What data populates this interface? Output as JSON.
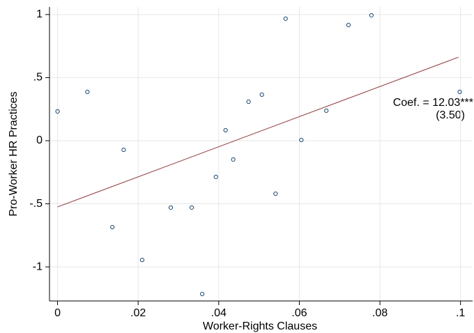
{
  "chart_data": {
    "type": "scatter",
    "x_label": "Worker-Rights Clauses",
    "y_label": "Pro-Worker HR Practices",
    "xlim": [
      -0.002,
      0.103
    ],
    "ylim": [
      -1.27,
      1.06
    ],
    "xticks": [
      0,
      {
        "value": 0.02,
        "label": ".02"
      },
      {
        "value": 0.04,
        "label": ".04"
      },
      {
        "value": 0.06,
        "label": ".06"
      },
      {
        "value": 0.08,
        "label": ".08"
      },
      {
        "value": 0.1,
        "label": ".1"
      }
    ],
    "yticks": [
      1,
      {
        "value": 0.5,
        "label": ".5"
      },
      0,
      {
        "value": -0.5,
        "label": "-.5"
      },
      -1
    ],
    "grid": true,
    "points": {
      "color": "#1a476f",
      "x": [
        0,
        0.0074,
        0.0136,
        0.0164,
        0.021,
        0.0281,
        0.0333,
        0.0359,
        0.0393,
        0.0417,
        0.0436,
        0.0474,
        0.0507,
        0.0541,
        0.0566,
        0.0605,
        0.0667,
        0.0722,
        0.0779,
        0.0998
      ],
      "y": [
        0.232,
        0.387,
        -0.685,
        -0.072,
        -0.945,
        -0.53,
        -0.53,
        -1.215,
        -0.287,
        0.083,
        -0.149,
        0.309,
        0.365,
        -0.42,
        0.967,
        0.006,
        0.238,
        0.917,
        0.994,
        0.387
      ]
    },
    "fit_line": {
      "color": "#90353b",
      "x": [
        0,
        0.0995
      ],
      "y": [
        -0.525,
        0.662
      ]
    },
    "annotations": [
      "Coef. = 12.03***",
      "(3.50)"
    ]
  }
}
